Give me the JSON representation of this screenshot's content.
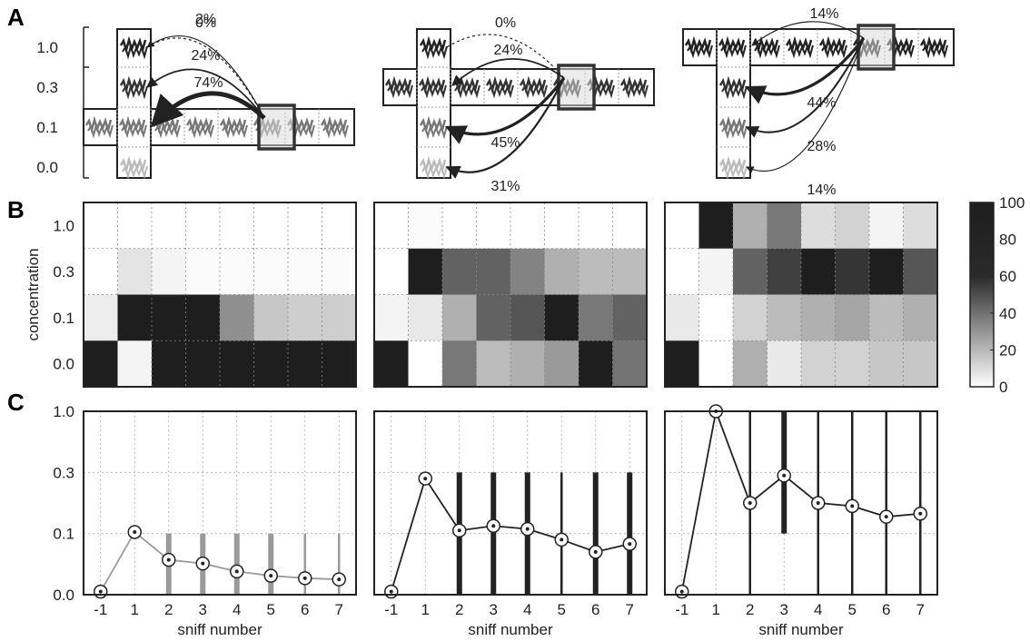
{
  "panel_labels": [
    "A",
    "B",
    "C"
  ],
  "concentration_labels": [
    "1.0",
    "0.3",
    "0.1",
    "0.0"
  ],
  "sniff_ticks": [
    "-1",
    "1",
    "2",
    "3",
    "4",
    "5",
    "6",
    "7"
  ],
  "xlabel": "sniff number",
  "ylabel_b": "concentration",
  "colorbar_ticks": [
    "100",
    "80",
    "60",
    "40",
    "20",
    "0"
  ],
  "schematics": [
    {
      "focus_row": "0.1",
      "focus_col": 5,
      "transitions": [
        {
          "target": "1.0",
          "pct": "0%"
        },
        {
          "target": "1.0",
          "pct": "2%"
        },
        {
          "target": "0.3",
          "pct": "24%"
        },
        {
          "target": "0.1",
          "pct": "74%"
        }
      ]
    },
    {
      "focus_row": "0.3",
      "focus_col": 5,
      "transitions": [
        {
          "target": "1.0",
          "pct": "0%"
        },
        {
          "target": "0.3",
          "pct": "24%"
        },
        {
          "target": "0.1",
          "pct": "45%"
        },
        {
          "target": "0.0",
          "pct": "31%"
        }
      ]
    },
    {
      "focus_row": "1.0",
      "focus_col": 5,
      "transitions": [
        {
          "target": "1.0",
          "pct": "14%"
        },
        {
          "target": "0.3",
          "pct": "44%"
        },
        {
          "target": "0.1",
          "pct": "28%"
        },
        {
          "target": "0.0",
          "pct": "14%"
        }
      ]
    }
  ],
  "chart_data": [
    {
      "type": "heatmap",
      "panel": "B",
      "ylabel": "concentration",
      "colorbar": {
        "min": 0,
        "max": 100,
        "ticks": [
          0,
          20,
          40,
          60,
          80,
          100
        ]
      },
      "x": [
        "-1",
        "1",
        "2",
        "3",
        "4",
        "5",
        "6",
        "7"
      ],
      "y": [
        "1.0",
        "0.3",
        "0.1",
        "0.0"
      ],
      "maps": [
        {
          "values": [
            [
              0,
              0,
              0,
              0,
              0,
              0,
              0,
              0
            ],
            [
              0,
              12,
              5,
              2,
              2,
              2,
              2,
              2
            ],
            [
              8,
              100,
              100,
              100,
              50,
              25,
              22,
              22
            ],
            [
              100,
              5,
              100,
              100,
              100,
              100,
              100,
              100
            ]
          ]
        },
        {
          "values": [
            [
              0,
              2,
              0,
              0,
              0,
              0,
              0,
              0
            ],
            [
              0,
              100,
              70,
              70,
              55,
              35,
              30,
              30
            ],
            [
              5,
              10,
              35,
              70,
              75,
              100,
              60,
              70
            ],
            [
              100,
              0,
              60,
              30,
              35,
              45,
              100,
              62
            ]
          ]
        },
        {
          "values": [
            [
              0,
              100,
              35,
              60,
              15,
              20,
              5,
              15
            ],
            [
              0,
              5,
              70,
              85,
              100,
              90,
              100,
              75
            ],
            [
              10,
              0,
              20,
              30,
              35,
              40,
              30,
              35
            ],
            [
              100,
              0,
              35,
              10,
              20,
              20,
              25,
              25
            ]
          ]
        }
      ]
    },
    {
      "type": "line",
      "panel": "C",
      "xlabel": "sniff number",
      "x": [
        "-1",
        "1",
        "2",
        "3",
        "4",
        "5",
        "6",
        "7"
      ],
      "y_ticks": [
        "0.0",
        "0.1",
        "0.3",
        "1.0"
      ],
      "series": [
        {
          "color": "#9a9a9a",
          "y": [
            0.005,
            0.105,
            0.057,
            0.051,
            0.038,
            0.031,
            0.027,
            0.025
          ],
          "range_low": [
            null,
            null,
            0.0,
            0.0,
            0.0,
            0.0,
            0.0,
            0.0
          ],
          "range_high": [
            null,
            null,
            0.1,
            0.1,
            0.1,
            0.1,
            0.1,
            0.1
          ],
          "range_thick": [
            null,
            null,
            true,
            true,
            true,
            true,
            false,
            false
          ]
        },
        {
          "color": "#222222",
          "y": [
            0.005,
            0.28,
            0.11,
            0.125,
            0.115,
            0.09,
            0.07,
            0.083
          ],
          "range_low": [
            null,
            null,
            0.0,
            0.0,
            0.0,
            0.0,
            0.0,
            0.0
          ],
          "range_high": [
            null,
            null,
            0.3,
            0.3,
            0.3,
            0.3,
            0.3,
            0.3
          ],
          "range_thick": [
            null,
            null,
            true,
            true,
            true,
            false,
            true,
            true
          ]
        },
        {
          "color": "#222222",
          "y": [
            0.005,
            1.0,
            0.2,
            0.29,
            0.2,
            0.19,
            0.155,
            0.165
          ],
          "range_low": [
            null,
            null,
            0.0,
            0.1,
            0.0,
            0.0,
            0.0,
            0.0
          ],
          "range_high": [
            null,
            null,
            1.0,
            1.0,
            1.0,
            1.0,
            1.0,
            1.0
          ],
          "range_thick": [
            null,
            null,
            false,
            true,
            false,
            false,
            false,
            false
          ]
        }
      ]
    }
  ]
}
